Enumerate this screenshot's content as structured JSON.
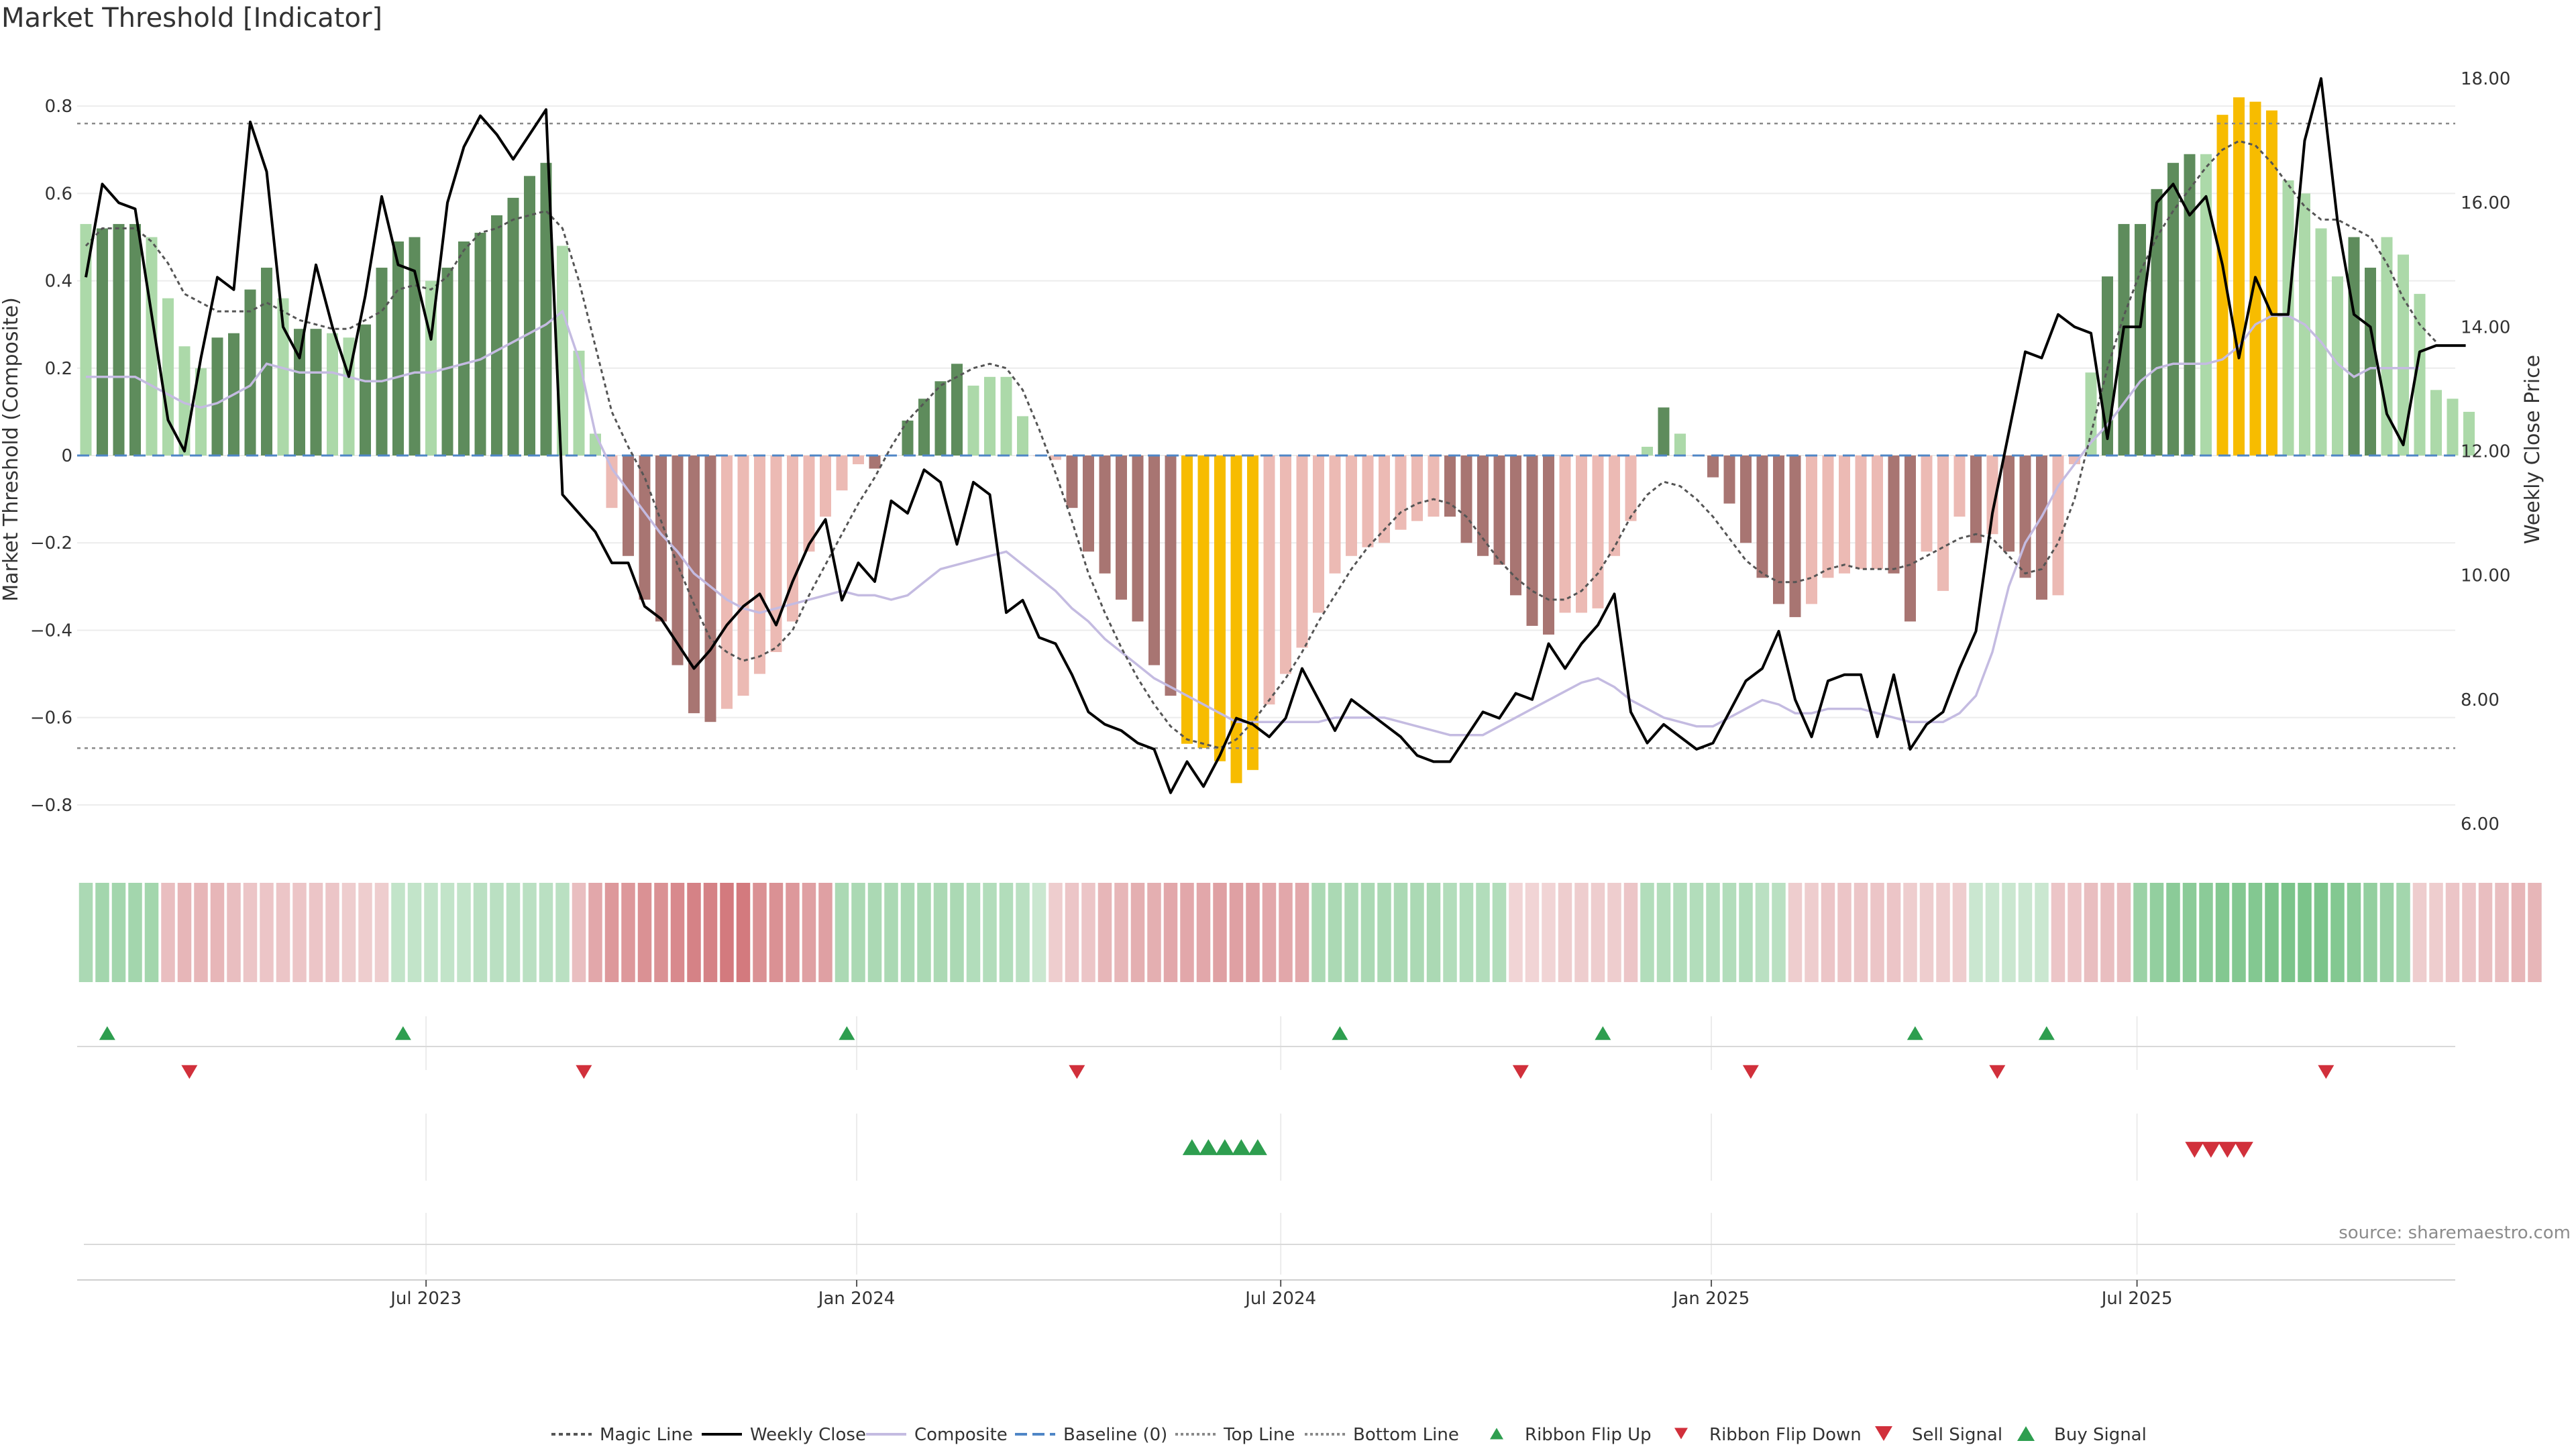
{
  "chart_data": {
    "type": "bar",
    "title": "Market Threshold [Indicator]",
    "ylabel_left": "Market Threshold (Composite)",
    "ylabel_right": "Weekly Close Price",
    "ylim_left": [
      -0.9,
      0.92
    ],
    "ylim_right": [
      5.6,
      18.4
    ],
    "yticks_left": [
      -0.8,
      -0.6,
      -0.4,
      -0.2,
      0,
      0.2,
      0.4,
      0.6,
      0.8
    ],
    "yticks_left_labels": [
      "−0.8",
      "−0.6",
      "−0.4",
      "−0.2",
      "0",
      "0.2",
      "0.4",
      "0.6",
      "0.8"
    ],
    "yticks_right": [
      6,
      8,
      10,
      12,
      14,
      16,
      18
    ],
    "yticks_right_labels": [
      "6.00",
      "8.00",
      "10.00",
      "12.00",
      "14.00",
      "16.00",
      "18.00"
    ],
    "xticks": [
      {
        "label": "Jul 2023",
        "week": 20.7
      },
      {
        "label": "Jan 2024",
        "week": 46.9
      },
      {
        "label": "Jul 2024",
        "week": 72.7
      },
      {
        "label": "Jan 2025",
        "week": 98.9
      },
      {
        "label": "Jul 2025",
        "week": 124.8
      }
    ],
    "top_line": 0.76,
    "bottom_line": -0.67,
    "source": "source: sharemaestro.com",
    "composite": [
      0.53,
      0.52,
      0.53,
      0.53,
      0.5,
      0.36,
      0.25,
      0.2,
      0.27,
      0.28,
      0.38,
      0.43,
      0.36,
      0.29,
      0.29,
      0.28,
      0.27,
      0.3,
      0.43,
      0.49,
      0.5,
      0.4,
      0.43,
      0.49,
      0.51,
      0.55,
      0.59,
      0.64,
      0.67,
      0.48,
      0.24,
      0.05,
      -0.12,
      -0.23,
      -0.33,
      -0.38,
      -0.48,
      -0.59,
      -0.61,
      -0.58,
      -0.55,
      -0.5,
      -0.45,
      -0.38,
      -0.22,
      -0.14,
      -0.08,
      -0.02,
      -0.03,
      0,
      0.08,
      0.13,
      0.17,
      0.21,
      0.16,
      0.18,
      0.18,
      0.09,
      0,
      -0.01,
      -0.12,
      -0.22,
      -0.27,
      -0.33,
      -0.38,
      -0.48,
      -0.55,
      -0.66,
      -0.67,
      -0.7,
      -0.75,
      -0.72,
      -0.57,
      -0.5,
      -0.44,
      -0.36,
      -0.27,
      -0.23,
      -0.21,
      -0.2,
      -0.17,
      -0.15,
      -0.14,
      -0.14,
      -0.2,
      -0.23,
      -0.25,
      -0.32,
      -0.39,
      -0.41,
      -0.36,
      -0.36,
      -0.35,
      -0.23,
      -0.15,
      0.02,
      0.11,
      0.05,
      0,
      -0.05,
      -0.11,
      -0.2,
      -0.28,
      -0.34,
      -0.37,
      -0.34,
      -0.28,
      -0.27,
      -0.26,
      -0.26,
      -0.27,
      -0.38,
      -0.22,
      -0.31,
      -0.14,
      -0.2,
      -0.18,
      -0.22,
      -0.28,
      -0.33,
      -0.32,
      -0.02,
      0.19,
      0.41,
      0.53,
      0.53,
      0.61,
      0.67,
      0.69,
      0.69,
      0.78,
      0.82,
      0.81,
      0.79,
      0.63,
      0.6,
      0.52,
      0.41,
      0.5,
      0.43,
      0.5,
      0.46,
      0.37,
      0.15,
      0.13,
      0.1
    ],
    "composite_colors": [
      "g1",
      "g3",
      "g3",
      "g3",
      "g1",
      "g1",
      "g1",
      "g1",
      "g3",
      "g3",
      "g3",
      "g3",
      "g1",
      "g3",
      "g3",
      "g1",
      "g1",
      "g3",
      "g3",
      "g3",
      "g3",
      "g1",
      "g3",
      "g3",
      "g3",
      "g3",
      "g3",
      "g3",
      "g3",
      "g1",
      "g1",
      "g1",
      "r1",
      "r3",
      "r3",
      "r3",
      "r3",
      "r3",
      "r3",
      "r1",
      "r1",
      "r1",
      "r1",
      "r1",
      "r1",
      "r1",
      "r1",
      "r1",
      "r3",
      "g1",
      "g3",
      "g3",
      "g3",
      "g3",
      "g1",
      "g1",
      "g1",
      "g1",
      "r1",
      "r1",
      "r3",
      "r3",
      "r3",
      "r3",
      "r3",
      "r3",
      "r3",
      "y",
      "y",
      "y",
      "y",
      "y",
      "r1",
      "r1",
      "r1",
      "r1",
      "r1",
      "r1",
      "r1",
      "r1",
      "r1",
      "r1",
      "r1",
      "r3",
      "r3",
      "r3",
      "r3",
      "r3",
      "r3",
      "r3",
      "r1",
      "r1",
      "r1",
      "r1",
      "r1",
      "g1",
      "g3",
      "g1",
      "r1",
      "r3",
      "r3",
      "r3",
      "r3",
      "r3",
      "r3",
      "r1",
      "r1",
      "r1",
      "r1",
      "r1",
      "r3",
      "r3",
      "r1",
      "r1",
      "r1",
      "r3",
      "r1",
      "r3",
      "r3",
      "r3",
      "r1",
      "r1",
      "g1",
      "g3",
      "g3",
      "g3",
      "g3",
      "g3",
      "g3",
      "g1",
      "y",
      "y",
      "y",
      "y",
      "g1",
      "g1",
      "g1",
      "g1",
      "g3",
      "g3",
      "g1",
      "g1",
      "g1",
      "g1",
      "g1",
      "g1"
    ],
    "weekly_close": [
      14.8,
      16.3,
      16.0,
      15.9,
      14.2,
      12.5,
      12.0,
      13.5,
      14.8,
      14.6,
      17.3,
      16.5,
      14.0,
      13.5,
      15.0,
      14.0,
      13.2,
      14.5,
      16.1,
      15.0,
      14.9,
      13.8,
      16.0,
      16.9,
      17.4,
      17.1,
      16.7,
      17.1,
      17.5,
      11.3,
      11.0,
      10.7,
      10.2,
      10.2,
      9.5,
      9.3,
      8.9,
      8.5,
      8.8,
      9.2,
      9.5,
      9.7,
      9.2,
      9.9,
      10.5,
      10.9,
      9.6,
      10.2,
      9.9,
      11.2,
      11.0,
      11.7,
      11.5,
      10.5,
      11.5,
      11.3,
      9.4,
      9.6,
      9.0,
      8.9,
      8.4,
      7.8,
      7.6,
      7.5,
      7.3,
      7.2,
      6.5,
      7.0,
      6.6,
      7.1,
      7.7,
      7.6,
      7.4,
      7.7,
      8.5,
      8.0,
      7.5,
      8.0,
      7.8,
      7.6,
      7.4,
      7.1,
      7.0,
      7.0,
      7.4,
      7.8,
      7.7,
      8.1,
      8.0,
      8.9,
      8.5,
      8.9,
      9.2,
      9.7,
      7.8,
      7.3,
      7.6,
      7.4,
      7.2,
      7.3,
      7.8,
      8.3,
      8.5,
      9.1,
      8.0,
      7.4,
      8.3,
      8.4,
      8.4,
      7.4,
      8.4,
      7.2,
      7.6,
      7.8,
      8.5,
      9.1,
      11.0,
      12.3,
      13.6,
      13.5,
      14.2,
      14.0,
      13.9,
      12.2,
      14.0,
      14.0,
      16.0,
      16.3,
      15.8,
      16.1,
      15.0,
      13.5,
      14.8,
      14.2,
      14.2,
      17.0,
      18.0,
      15.7,
      14.2,
      14.0,
      12.6,
      12.1,
      13.6,
      13.7
    ],
    "weekly_close_last_point": {
      "week": 144.8,
      "value": 13.7
    },
    "magic_line": [
      0.48,
      0.52,
      0.52,
      0.52,
      0.49,
      0.44,
      0.37,
      0.35,
      0.33,
      0.33,
      0.33,
      0.35,
      0.33,
      0.31,
      0.3,
      0.29,
      0.29,
      0.31,
      0.33,
      0.38,
      0.39,
      0.38,
      0.41,
      0.47,
      0.51,
      0.52,
      0.54,
      0.55,
      0.56,
      0.52,
      0.4,
      0.25,
      0.1,
      0.02,
      -0.05,
      -0.15,
      -0.25,
      -0.34,
      -0.42,
      -0.45,
      -0.47,
      -0.46,
      -0.44,
      -0.4,
      -0.32,
      -0.25,
      -0.18,
      -0.11,
      -0.05,
      0.02,
      0.08,
      0.12,
      0.16,
      0.18,
      0.2,
      0.21,
      0.2,
      0.15,
      0.06,
      -0.04,
      -0.15,
      -0.27,
      -0.36,
      -0.44,
      -0.51,
      -0.57,
      -0.62,
      -0.65,
      -0.66,
      -0.67,
      -0.65,
      -0.61,
      -0.56,
      -0.51,
      -0.45,
      -0.38,
      -0.32,
      -0.26,
      -0.21,
      -0.17,
      -0.13,
      -0.11,
      -0.1,
      -0.11,
      -0.14,
      -0.19,
      -0.24,
      -0.28,
      -0.31,
      -0.33,
      -0.33,
      -0.31,
      -0.27,
      -0.21,
      -0.14,
      -0.09,
      -0.06,
      -0.07,
      -0.1,
      -0.14,
      -0.19,
      -0.24,
      -0.27,
      -0.29,
      -0.29,
      -0.28,
      -0.26,
      -0.25,
      -0.26,
      -0.26,
      -0.26,
      -0.25,
      -0.23,
      -0.21,
      -0.19,
      -0.18,
      -0.19,
      -0.23,
      -0.27,
      -0.26,
      -0.2,
      -0.1,
      0.05,
      0.2,
      0.32,
      0.42,
      0.5,
      0.56,
      0.61,
      0.66,
      0.7,
      0.72,
      0.71,
      0.67,
      0.62,
      0.57,
      0.54,
      0.54,
      0.52,
      0.5,
      0.44,
      0.36,
      0.3,
      0.26
    ],
    "composite_line": [
      0.18,
      0.18,
      0.18,
      0.18,
      0.16,
      0.14,
      0.12,
      0.11,
      0.12,
      0.14,
      0.16,
      0.21,
      0.2,
      0.19,
      0.19,
      0.19,
      0.18,
      0.17,
      0.17,
      0.18,
      0.19,
      0.19,
      0.2,
      0.21,
      0.22,
      0.24,
      0.26,
      0.28,
      0.3,
      0.33,
      0.22,
      0.05,
      -0.03,
      -0.08,
      -0.13,
      -0.18,
      -0.22,
      -0.27,
      -0.3,
      -0.33,
      -0.35,
      -0.36,
      -0.35,
      -0.34,
      -0.33,
      -0.32,
      -0.31,
      -0.32,
      -0.32,
      -0.33,
      -0.32,
      -0.29,
      -0.26,
      -0.25,
      -0.24,
      -0.23,
      -0.22,
      -0.25,
      -0.28,
      -0.31,
      -0.35,
      -0.38,
      -0.42,
      -0.45,
      -0.48,
      -0.51,
      -0.53,
      -0.55,
      -0.57,
      -0.59,
      -0.61,
      -0.61,
      -0.61,
      -0.61,
      -0.61,
      -0.61,
      -0.6,
      -0.6,
      -0.6,
      -0.6,
      -0.61,
      -0.62,
      -0.63,
      -0.64,
      -0.64,
      -0.64,
      -0.62,
      -0.6,
      -0.58,
      -0.56,
      -0.54,
      -0.52,
      -0.51,
      -0.53,
      -0.56,
      -0.58,
      -0.6,
      -0.61,
      -0.62,
      -0.62,
      -0.6,
      -0.58,
      -0.56,
      -0.57,
      -0.59,
      -0.59,
      -0.58,
      -0.58,
      -0.58,
      -0.59,
      -0.6,
      -0.61,
      -0.61,
      -0.61,
      -0.59,
      -0.55,
      -0.45,
      -0.3,
      -0.2,
      -0.14,
      -0.07,
      -0.02,
      0.03,
      0.07,
      0.12,
      0.17,
      0.2,
      0.21,
      0.21,
      0.21,
      0.22,
      0.25,
      0.3,
      0.32,
      0.32,
      0.3,
      0.26,
      0.21,
      0.18,
      0.2,
      0.2,
      0.2,
      0.2
    ],
    "ribbon": [
      0.4,
      0.45,
      0.45,
      0.45,
      0.45,
      -0.3,
      -0.35,
      -0.35,
      -0.35,
      -0.3,
      -0.25,
      -0.25,
      -0.25,
      -0.25,
      -0.25,
      -0.25,
      -0.2,
      -0.2,
      -0.2,
      0.25,
      0.25,
      0.25,
      0.25,
      0.25,
      0.3,
      0.3,
      0.3,
      0.3,
      0.3,
      0.3,
      -0.3,
      -0.45,
      -0.55,
      -0.55,
      -0.6,
      -0.6,
      -0.65,
      -0.7,
      -0.7,
      -0.75,
      -0.75,
      -0.6,
      -0.6,
      -0.55,
      -0.5,
      -0.5,
      0.4,
      0.4,
      0.4,
      0.4,
      0.4,
      0.4,
      0.4,
      0.4,
      0.35,
      0.35,
      0.35,
      0.3,
      0.2,
      -0.2,
      -0.25,
      -0.25,
      -0.35,
      -0.35,
      -0.4,
      -0.4,
      -0.45,
      -0.45,
      -0.45,
      -0.5,
      -0.5,
      -0.5,
      -0.45,
      -0.45,
      -0.45,
      0.4,
      0.4,
      0.4,
      0.4,
      0.4,
      0.4,
      0.4,
      0.4,
      0.35,
      0.35,
      0.35,
      0.35,
      -0.15,
      -0.15,
      -0.15,
      -0.2,
      -0.2,
      -0.2,
      -0.2,
      -0.25,
      0.35,
      0.35,
      0.35,
      0.35,
      0.35,
      0.35,
      0.35,
      0.3,
      0.3,
      -0.2,
      -0.2,
      -0.25,
      -0.25,
      -0.25,
      -0.25,
      -0.25,
      -0.2,
      -0.2,
      -0.2,
      -0.2,
      0.2,
      0.2,
      0.2,
      0.2,
      0.2,
      -0.25,
      -0.25,
      -0.3,
      -0.3,
      -0.3,
      0.5,
      0.55,
      0.6,
      0.6,
      0.6,
      0.65,
      0.65,
      0.65,
      0.7,
      0.7,
      0.7,
      0.7,
      0.65,
      0.6,
      0.55,
      0.5,
      0.45,
      -0.2,
      -0.2,
      -0.25,
      -0.25,
      -0.3,
      -0.3,
      -0.35,
      -0.35
    ],
    "ribbon_flip_up_weeks": [
      1.3,
      19.3,
      46.3,
      76.3,
      92.3,
      111.3,
      119.3
    ],
    "ribbon_flip_down_weeks": [
      6.3,
      30.3,
      60.3,
      87.3,
      101.3,
      116.3,
      136.3
    ],
    "buy_signal_weeks": [
      67.3,
      68.3,
      69.3,
      70.3,
      71.3
    ],
    "sell_signal_weeks": [
      128.3,
      129.3,
      130.3,
      131.3
    ],
    "legend": [
      "Magic Line",
      "Weekly Close",
      "Composite",
      "Baseline (0)",
      "Top Line",
      "Bottom Line",
      "Ribbon Flip Up",
      "Ribbon Flip Down",
      "Sell Signal",
      "Buy Signal"
    ],
    "legend_position": "bottom-center",
    "colors": {
      "g1": "#acd9a9",
      "g3": "#5e8c5c",
      "r1": "#ecbab4",
      "r3": "#a87572",
      "y": "#f7bc00",
      "weekly_close": "#000000",
      "magic_line": "#555555",
      "composite_line": "#c4bbe1",
      "baseline": "#4f86c6",
      "top_bottom": "#8a8a8a",
      "flip_up": "#2e9e4f",
      "flip_down": "#d1303b",
      "ribbon_green": "#4caf60",
      "ribbon_red": "#c6555a"
    }
  }
}
